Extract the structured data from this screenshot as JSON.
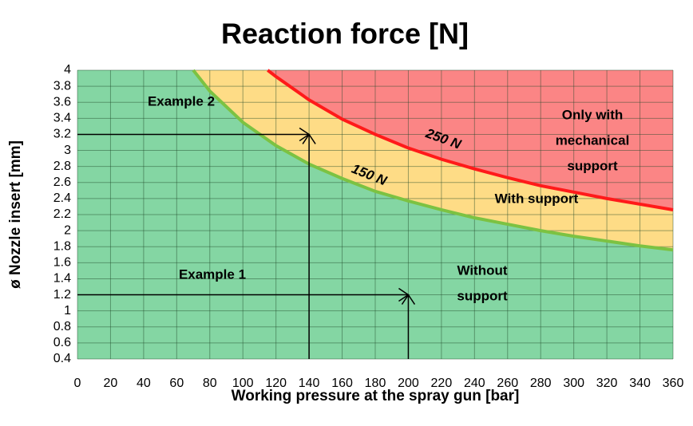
{
  "chart_data": {
    "type": "area-zones",
    "title": "Reaction force [N]",
    "x_label": "Working pressure at the spray gun [bar]",
    "y_label": "ø Nozzle insert [mm]",
    "xlim": [
      0,
      360
    ],
    "ylim": [
      0.4,
      4
    ],
    "xticks": [
      0,
      20,
      40,
      60,
      80,
      100,
      120,
      140,
      160,
      180,
      200,
      220,
      240,
      260,
      280,
      300,
      320,
      340,
      360
    ],
    "yticks": [
      0.4,
      0.6,
      0.8,
      1,
      1.2,
      1.4,
      1.6,
      1.8,
      2,
      2.2,
      2.4,
      2.6,
      2.8,
      3,
      3.2,
      3.4,
      3.6,
      3.8,
      4
    ],
    "grid": true,
    "series": [
      {
        "name": "150 N",
        "color": "#7cc242",
        "x": [
          70,
          80,
          100,
          120,
          140,
          160,
          180,
          200,
          220,
          240,
          260,
          280,
          300,
          320,
          340,
          360
        ],
        "values": [
          4.0,
          3.74,
          3.35,
          3.06,
          2.83,
          2.65,
          2.49,
          2.37,
          2.26,
          2.16,
          2.08,
          2.0,
          1.93,
          1.87,
          1.81,
          1.76
        ]
      },
      {
        "name": "250 N",
        "color": "#ff1a1a",
        "x": [
          115,
          120,
          140,
          160,
          180,
          200,
          220,
          240,
          260,
          280,
          300,
          320,
          340,
          360
        ],
        "values": [
          4.0,
          3.92,
          3.63,
          3.39,
          3.2,
          3.03,
          2.89,
          2.77,
          2.66,
          2.56,
          2.48,
          2.4,
          2.33,
          2.26
        ]
      }
    ],
    "region_labels": [
      [
        "Without",
        "support"
      ],
      [
        "With support"
      ],
      [
        "Only with",
        "mechanical",
        "support"
      ]
    ],
    "region_colors": [
      "#84d6a3",
      "#fedc86",
      "#fb8585"
    ],
    "examples": [
      {
        "label": "Example 1",
        "pressure": 200,
        "diameter": 1.2
      },
      {
        "label": "Example 2",
        "pressure": 140,
        "diameter": 3.2
      }
    ]
  }
}
